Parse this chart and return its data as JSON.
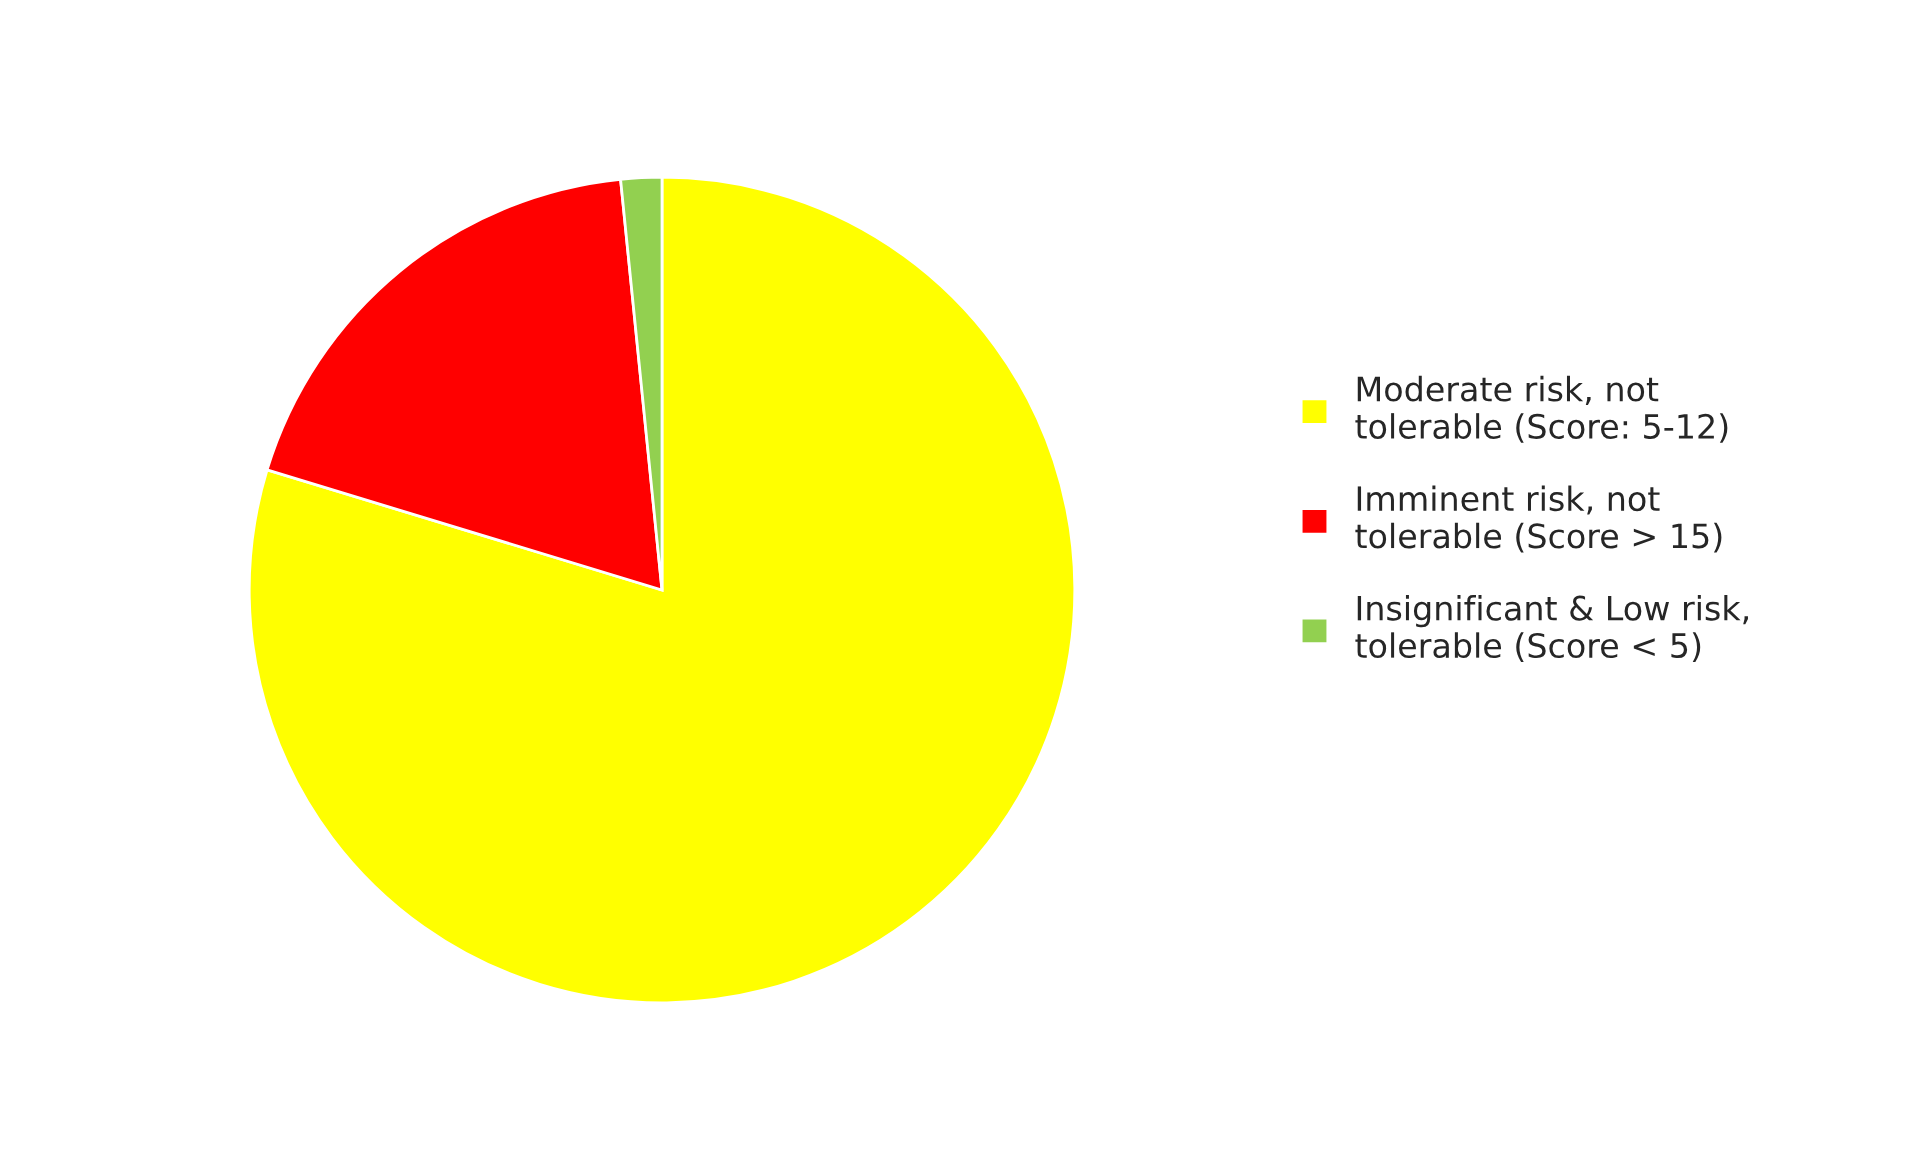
{
  "chart_data": {
    "type": "pie",
    "categories": [
      "Moderate risk, not tolerable (Score: 5-12)",
      "Imminent risk, not tolerable (Score > 15)",
      "Insignificant & Low risk, tolerable (Score < 5)"
    ],
    "values": [
      79.7,
      18.7,
      1.6
    ],
    "colors": [
      "#ffff00",
      "#ff0000",
      "#92d050"
    ],
    "legend": "right"
  }
}
